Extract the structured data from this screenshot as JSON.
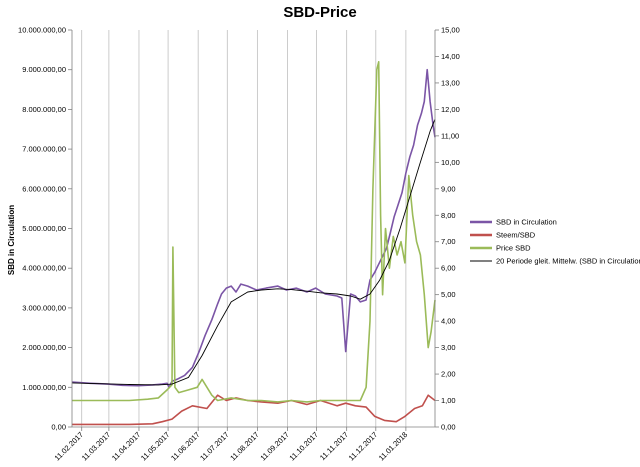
{
  "chart_data": {
    "type": "line",
    "title": "SBD-Price",
    "ylabel": "SBD in Circulation",
    "y2label": "",
    "x_tick_labels": [
      "11.02.2017",
      "11.03.2017",
      "11.04.2017",
      "11.05.2017",
      "11.06.2017",
      "11.07.2017",
      "11.08.2017",
      "11.09.2017",
      "11.10.2017",
      "11.11.2017",
      "11.12.2017",
      "11.01.2018"
    ],
    "ylim": [
      0,
      10000000
    ],
    "y_ticks": [
      "0,00",
      "1.000.000,00",
      "2.000.000,00",
      "3.000.000,00",
      "4.000.000,00",
      "5.000.000,00",
      "6.000.000,00",
      "7.000.000,00",
      "8.000.000,00",
      "9.000.000,00",
      "10.000.000,00"
    ],
    "y2lim": [
      0,
      15
    ],
    "y2_ticks": [
      "0,00",
      "1,00",
      "2,00",
      "3,00",
      "4,00",
      "5,00",
      "6,00",
      "7,00",
      "8,00",
      "9,00",
      "10,00",
      "11,00",
      "12,00",
      "13,00",
      "14,00",
      "15,00"
    ],
    "grid": "vertical",
    "legend_position": "right",
    "x_range": [
      "2017-02-01",
      "2018-02-10"
    ],
    "series": [
      {
        "name": "SBD in Circulation",
        "axis": "left",
        "color": "#7b55a6",
        "x": [
          "2017-02-01",
          "2017-02-20",
          "2017-03-10",
          "2017-03-25",
          "2017-04-10",
          "2017-04-25",
          "2017-05-05",
          "2017-05-10",
          "2017-05-12",
          "2017-05-15",
          "2017-05-20",
          "2017-05-28",
          "2017-06-05",
          "2017-06-12",
          "2017-06-18",
          "2017-06-25",
          "2017-07-01",
          "2017-07-05",
          "2017-07-10",
          "2017-07-15",
          "2017-07-20",
          "2017-07-25",
          "2017-08-01",
          "2017-08-10",
          "2017-08-20",
          "2017-09-01",
          "2017-09-10",
          "2017-09-20",
          "2017-10-01",
          "2017-10-10",
          "2017-10-20",
          "2017-11-01",
          "2017-11-06",
          "2017-11-10",
          "2017-11-15",
          "2017-11-20",
          "2017-11-25",
          "2017-12-01",
          "2017-12-05",
          "2017-12-10",
          "2017-12-14",
          "2017-12-18",
          "2017-12-22",
          "2017-12-26",
          "2017-12-30",
          "2018-01-03",
          "2018-01-07",
          "2018-01-11",
          "2018-01-15",
          "2018-01-19",
          "2018-01-23",
          "2018-01-27",
          "2018-01-30",
          "2018-02-02",
          "2018-02-05",
          "2018-02-08",
          "2018-02-10"
        ],
        "y": [
          1130000,
          1100000,
          1080000,
          1050000,
          1040000,
          1060000,
          1080000,
          1100000,
          1000000,
          1150000,
          1200000,
          1300000,
          1500000,
          1900000,
          2300000,
          2700000,
          3100000,
          3350000,
          3500000,
          3550000,
          3400000,
          3600000,
          3550000,
          3450000,
          3500000,
          3550000,
          3450000,
          3500000,
          3400000,
          3500000,
          3350000,
          3300000,
          3250000,
          1900000,
          3350000,
          3300000,
          3150000,
          3200000,
          3700000,
          3900000,
          4100000,
          4300000,
          4500000,
          4900000,
          5300000,
          5600000,
          5900000,
          6400000,
          6800000,
          7100000,
          7600000,
          7900000,
          8200000,
          9000000,
          8200000,
          7600000,
          7300000
        ]
      },
      {
        "name": "Steem/SBD",
        "axis": "right",
        "color": "#c0504d",
        "x": [
          "2017-02-01",
          "2017-03-01",
          "2017-04-01",
          "2017-04-25",
          "2017-05-05",
          "2017-05-15",
          "2017-05-25",
          "2017-06-05",
          "2017-06-20",
          "2017-07-01",
          "2017-07-10",
          "2017-07-20",
          "2017-08-01",
          "2017-08-15",
          "2017-09-01",
          "2017-09-15",
          "2017-10-01",
          "2017-10-15",
          "2017-11-01",
          "2017-11-10",
          "2017-11-20",
          "2017-12-01",
          "2017-12-10",
          "2017-12-20",
          "2018-01-01",
          "2018-01-10",
          "2018-01-20",
          "2018-01-28",
          "2018-02-03",
          "2018-02-10"
        ],
        "y": [
          0.1,
          0.1,
          0.1,
          0.12,
          0.2,
          0.3,
          0.6,
          0.8,
          0.7,
          1.2,
          1.0,
          1.1,
          1.0,
          0.95,
          0.9,
          1.0,
          0.85,
          1.0,
          0.8,
          0.9,
          0.8,
          0.75,
          0.4,
          0.25,
          0.2,
          0.4,
          0.7,
          0.8,
          1.2,
          1.0
        ]
      },
      {
        "name": "Price SBD",
        "axis": "right",
        "color": "#9bbb59",
        "x": [
          "2017-02-01",
          "2017-03-01",
          "2017-04-01",
          "2017-04-20",
          "2017-05-01",
          "2017-05-10",
          "2017-05-15",
          "2017-05-16",
          "2017-05-18",
          "2017-05-22",
          "2017-06-01",
          "2017-06-10",
          "2017-06-15",
          "2017-06-25",
          "2017-07-01",
          "2017-07-15",
          "2017-08-01",
          "2017-08-15",
          "2017-09-01",
          "2017-09-15",
          "2017-10-01",
          "2017-10-15",
          "2017-11-01",
          "2017-11-15",
          "2017-11-25",
          "2017-12-01",
          "2017-12-05",
          "2017-12-08",
          "2017-12-12",
          "2017-12-14",
          "2017-12-16",
          "2017-12-18",
          "2017-12-21",
          "2017-12-25",
          "2017-12-29",
          "2018-01-02",
          "2018-01-06",
          "2018-01-10",
          "2018-01-14",
          "2018-01-18",
          "2018-01-22",
          "2018-01-26",
          "2018-01-30",
          "2018-02-03",
          "2018-02-06",
          "2018-02-10"
        ],
        "y": [
          1.0,
          1.0,
          1.0,
          1.05,
          1.1,
          1.4,
          1.6,
          6.8,
          1.5,
          1.3,
          1.4,
          1.5,
          1.8,
          1.2,
          1.0,
          1.1,
          1.0,
          1.0,
          0.95,
          1.0,
          0.95,
          1.0,
          1.0,
          1.0,
          1.0,
          1.5,
          4.0,
          9.0,
          13.5,
          13.8,
          8.0,
          5.0,
          7.5,
          6.0,
          7.2,
          6.5,
          7.0,
          6.2,
          9.5,
          8.0,
          7.0,
          6.5,
          5.0,
          3.0,
          3.6,
          4.8
        ]
      },
      {
        "name": "20 Periode gleit. Mittelw.  (SBD in Circulation)",
        "axis": "left",
        "color": "#000000",
        "x": [
          "2017-02-01",
          "2017-03-01",
          "2017-04-01",
          "2017-05-01",
          "2017-05-15",
          "2017-06-01",
          "2017-06-15",
          "2017-07-01",
          "2017-07-15",
          "2017-08-01",
          "2017-08-15",
          "2017-09-01",
          "2017-09-15",
          "2017-10-01",
          "2017-10-15",
          "2017-11-01",
          "2017-11-15",
          "2017-11-25",
          "2017-12-05",
          "2017-12-15",
          "2017-12-25",
          "2018-01-05",
          "2018-01-15",
          "2018-01-25",
          "2018-02-05",
          "2018-02-10"
        ],
        "y": [
          1110000,
          1090000,
          1070000,
          1060000,
          1080000,
          1250000,
          1800000,
          2550000,
          3150000,
          3400000,
          3450000,
          3480000,
          3460000,
          3420000,
          3380000,
          3350000,
          3300000,
          3220000,
          3350000,
          3700000,
          4200000,
          5000000,
          5800000,
          6600000,
          7450000,
          7750000
        ]
      }
    ]
  }
}
